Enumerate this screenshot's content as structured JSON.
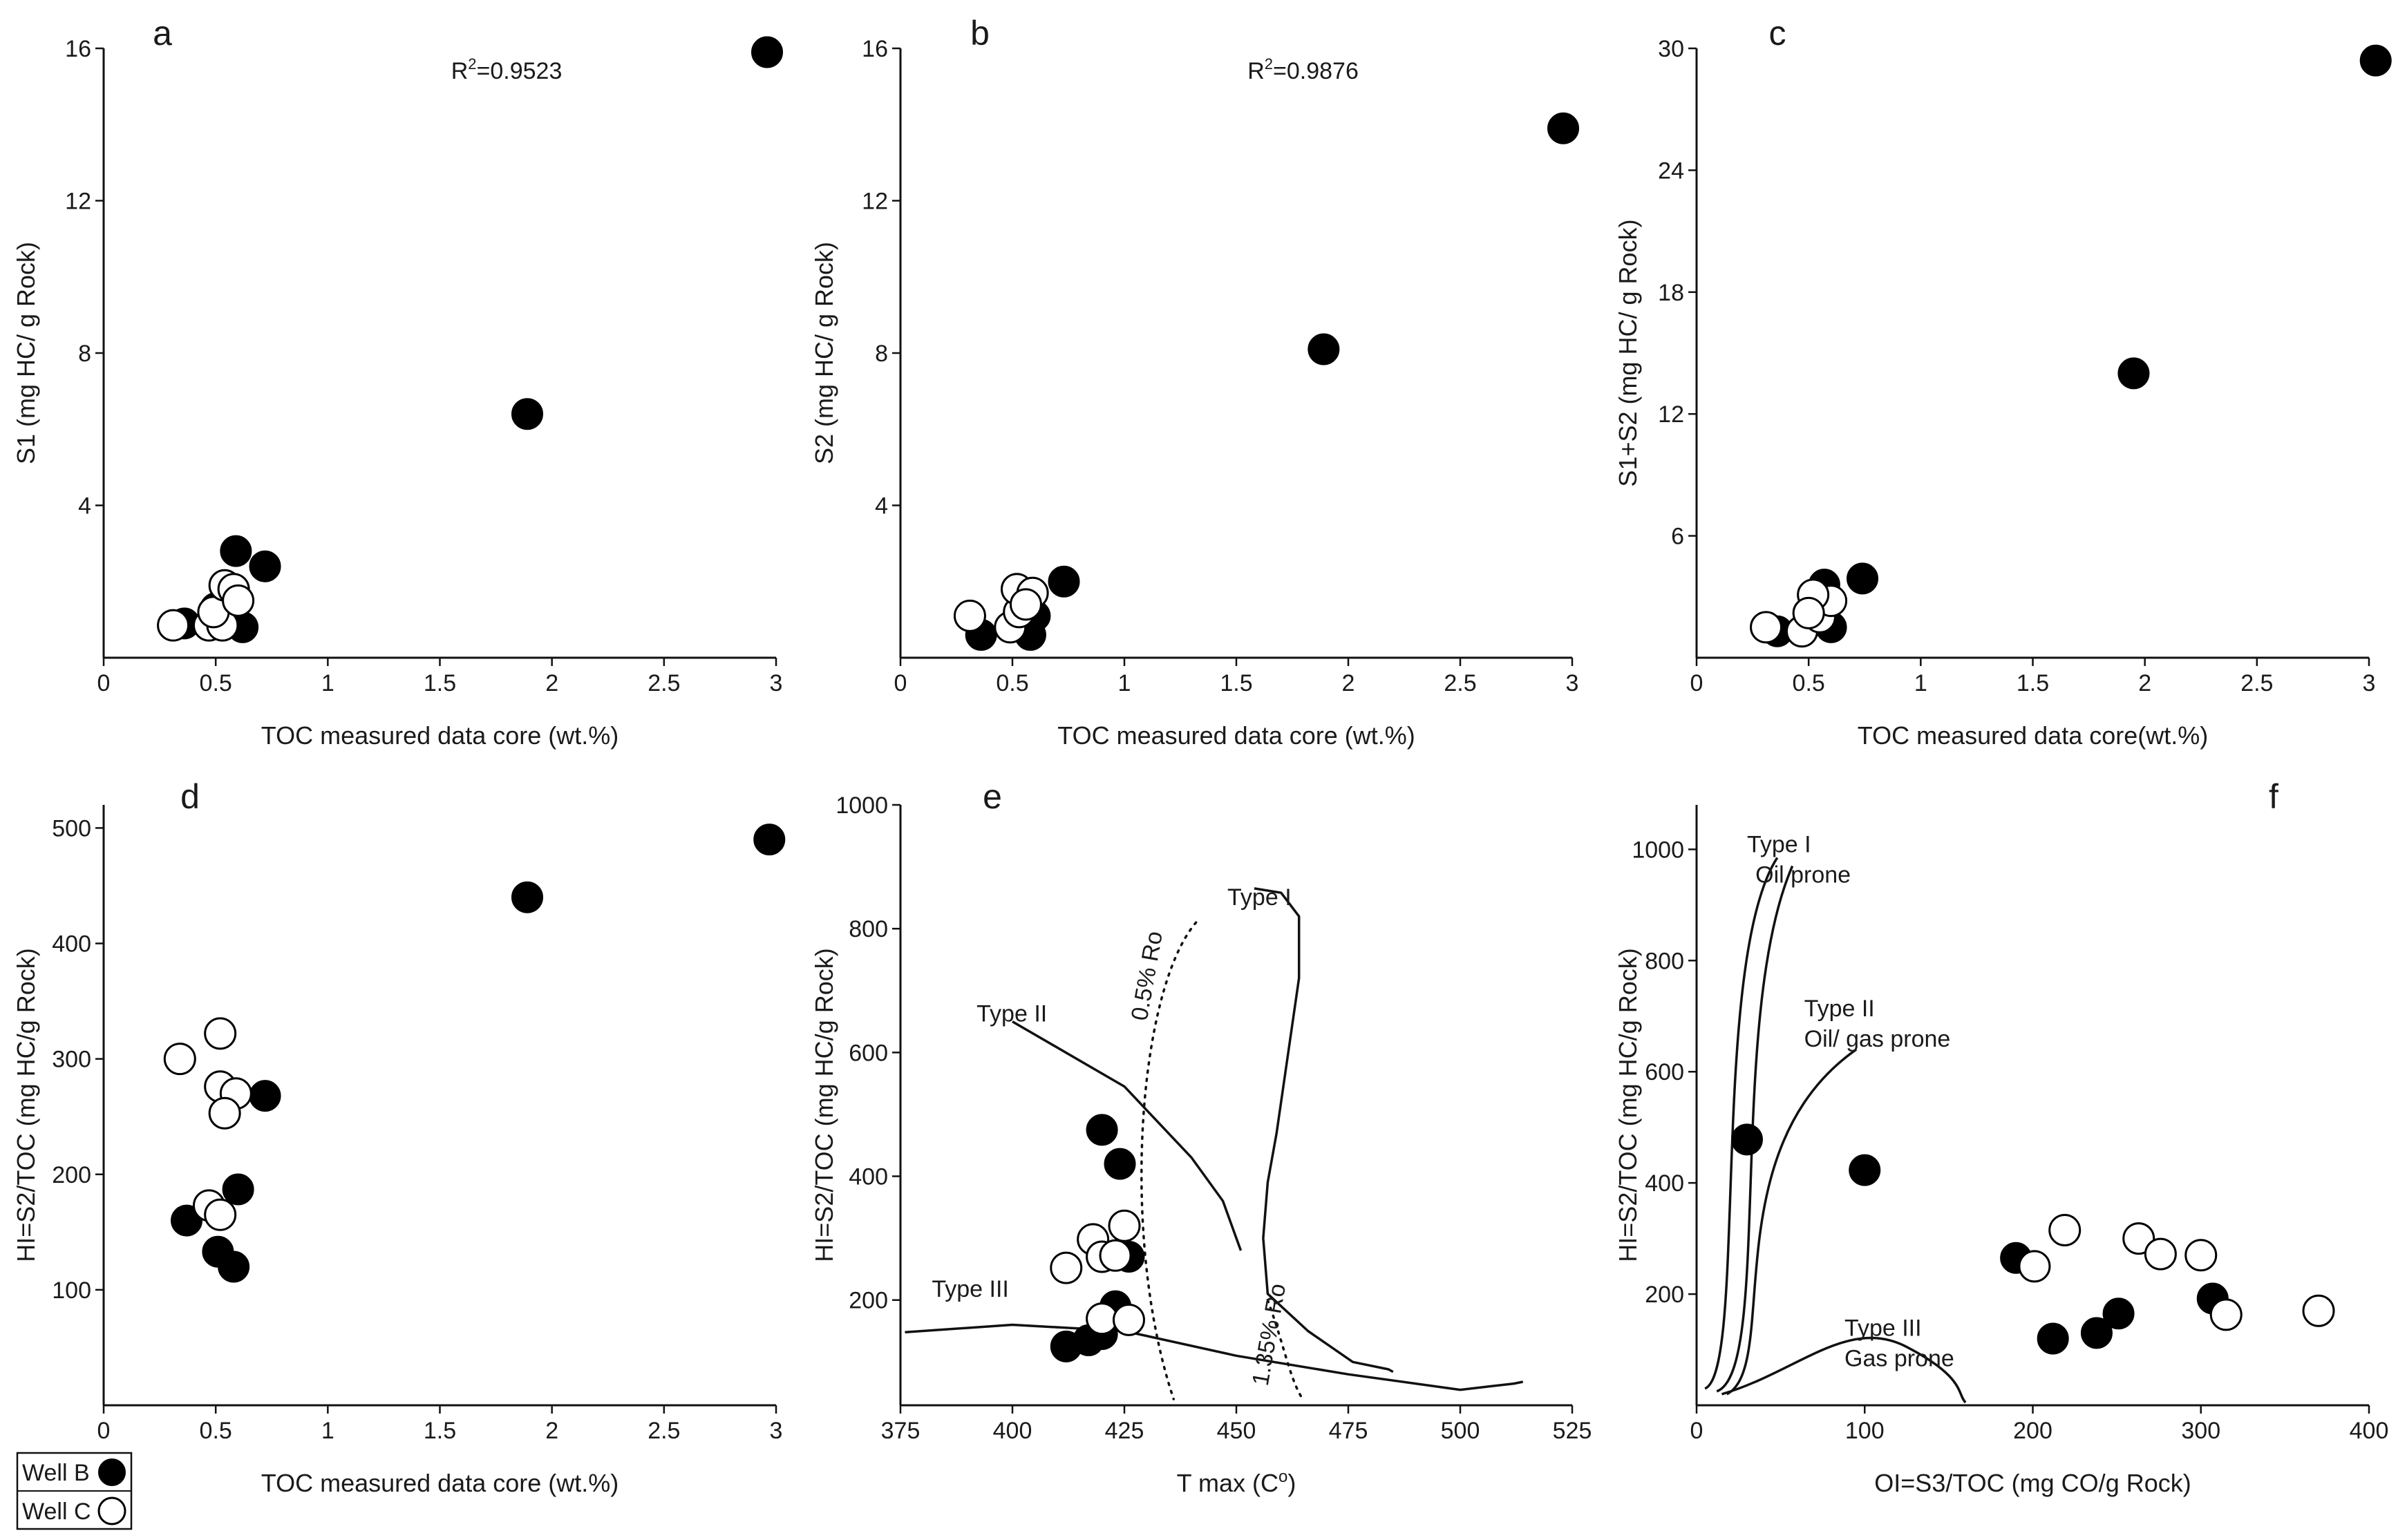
{
  "chart_data": [
    {
      "id": "a",
      "type": "scatter",
      "panel_label": "a",
      "xlabel": "TOC measured data core (wt.%)",
      "ylabel": "S1 (mg HC/ g Rock)",
      "xlim": [
        0,
        3
      ],
      "ylim": [
        0,
        16
      ],
      "xticks": [
        0,
        0.5,
        1,
        1.5,
        2,
        2.5,
        3
      ],
      "xtick_labels": [
        "0",
        "0.5",
        "1",
        "1.5",
        "2",
        "2.5",
        "3"
      ],
      "yticks": [
        4,
        8,
        12,
        16
      ],
      "ytick_labels": [
        "4",
        "8",
        "12",
        "16"
      ],
      "annotation": {
        "prefix": "R",
        "sup": "2",
        "text": "=0.9523"
      },
      "series": [
        {
          "name": "Well B",
          "points": [
            [
              0.36,
              0.9
            ],
            [
              0.5,
              1.3
            ],
            [
              0.59,
              2.8
            ],
            [
              0.72,
              2.4
            ],
            [
              0.62,
              0.8
            ],
            [
              1.89,
              6.4
            ],
            [
              2.96,
              15.9
            ]
          ]
        },
        {
          "name": "Well C",
          "points": [
            [
              0.31,
              0.85
            ],
            [
              0.47,
              0.85
            ],
            [
              0.53,
              0.85
            ],
            [
              0.49,
              1.2
            ],
            [
              0.54,
              1.9
            ],
            [
              0.58,
              1.8
            ],
            [
              0.6,
              1.5
            ]
          ]
        }
      ]
    },
    {
      "id": "b",
      "type": "scatter",
      "panel_label": "b",
      "xlabel": "TOC measured data core (wt.%)",
      "ylabel": "S2 (mg HC/ g Rock)",
      "xlim": [
        0,
        3
      ],
      "ylim": [
        0,
        16
      ],
      "xticks": [
        0,
        0.5,
        1,
        1.5,
        2,
        2.5,
        3
      ],
      "xtick_labels": [
        "0",
        "0.5",
        "1",
        "1.5",
        "2",
        "2.5",
        "3"
      ],
      "yticks": [
        4,
        8,
        12,
        16
      ],
      "ytick_labels": [
        "4",
        "8",
        "12",
        "16"
      ],
      "annotation": {
        "prefix": "R",
        "sup": "2",
        "text": "=0.9876"
      },
      "series": [
        {
          "name": "Well B",
          "points": [
            [
              0.36,
              0.6
            ],
            [
              0.58,
              0.6
            ],
            [
              0.6,
              1.1
            ],
            [
              0.73,
              2.0
            ],
            [
              1.89,
              8.1
            ],
            [
              2.96,
              13.9
            ]
          ]
        },
        {
          "name": "Well C",
          "points": [
            [
              0.31,
              1.1
            ],
            [
              0.49,
              0.8
            ],
            [
              0.53,
              1.2
            ],
            [
              0.52,
              1.8
            ],
            [
              0.59,
              1.7
            ],
            [
              0.56,
              1.4
            ]
          ]
        }
      ]
    },
    {
      "id": "c",
      "type": "scatter",
      "panel_label": "c",
      "xlabel": "TOC measured data core(wt.%)",
      "ylabel": "S1+S2  (mg HC/ g Rock)",
      "xlim": [
        0,
        3
      ],
      "ylim": [
        0,
        30
      ],
      "xticks": [
        0,
        0.5,
        1,
        1.5,
        2,
        2.5,
        3
      ],
      "xtick_labels": [
        "0",
        "0.5",
        "1",
        "1.5",
        "2",
        "2.5",
        "3"
      ],
      "yticks": [
        6,
        12,
        18,
        24,
        30
      ],
      "ytick_labels": [
        "6",
        "12",
        "18",
        "24",
        "30"
      ],
      "series": [
        {
          "name": "Well B",
          "points": [
            [
              0.36,
              1.3
            ],
            [
              0.6,
              1.5
            ],
            [
              0.57,
              3.6
            ],
            [
              0.74,
              3.9
            ],
            [
              1.95,
              14.0
            ],
            [
              3.03,
              29.4
            ]
          ]
        },
        {
          "name": "Well C",
          "points": [
            [
              0.31,
              1.5
            ],
            [
              0.47,
              1.3
            ],
            [
              0.55,
              2.0
            ],
            [
              0.6,
              2.8
            ],
            [
              0.52,
              3.1
            ],
            [
              0.5,
              2.2
            ]
          ]
        }
      ]
    },
    {
      "id": "d",
      "type": "scatter",
      "panel_label": "d",
      "xlabel": "TOC measured data core (wt.%)",
      "ylabel": "HI=S2/TOC  (mg HC/g Rock)",
      "xlim": [
        0,
        3
      ],
      "ylim": [
        0,
        520
      ],
      "xticks": [
        0,
        0.5,
        1,
        1.5,
        2,
        2.5,
        3
      ],
      "xtick_labels": [
        "0",
        "0.5",
        "1",
        "1.5",
        "2",
        "2.5",
        "3"
      ],
      "yticks": [
        100,
        200,
        300,
        400,
        500
      ],
      "ytick_labels": [
        "100",
        "200",
        "300",
        "400",
        "500"
      ],
      "series": [
        {
          "name": "Well B",
          "points": [
            [
              0.37,
              160
            ],
            [
              0.51,
              133
            ],
            [
              0.58,
              120
            ],
            [
              0.6,
              187
            ],
            [
              0.72,
              268
            ],
            [
              1.89,
              440
            ],
            [
              2.97,
              490
            ]
          ]
        },
        {
          "name": "Well C",
          "points": [
            [
              0.34,
              300
            ],
            [
              0.52,
              322
            ],
            [
              0.52,
              276
            ],
            [
              0.59,
              270
            ],
            [
              0.54,
              253
            ],
            [
              0.47,
              173
            ],
            [
              0.52,
              165
            ]
          ]
        }
      ]
    },
    {
      "id": "e",
      "type": "scatter",
      "panel_label": "e",
      "xlabel": "T max (C",
      "xlabel_sup": "o",
      "xlabel_suffix": ")",
      "ylabel": "HI=S2/TOC  (mg HC/g Rock)",
      "xlim": [
        375,
        525
      ],
      "ylim": [
        30,
        1000
      ],
      "xticks": [
        375,
        400,
        425,
        450,
        475,
        500,
        525
      ],
      "xtick_labels": [
        "375",
        "400",
        "425",
        "450",
        "475",
        "500",
        "525"
      ],
      "yticks": [
        200,
        400,
        600,
        800,
        1000
      ],
      "ytick_labels": [
        "200",
        "400",
        "600",
        "800",
        "1000"
      ],
      "series": [
        {
          "name": "Well B",
          "points": [
            [
              420,
              475
            ],
            [
              424,
              420
            ],
            [
              412,
              125
            ],
            [
              417,
              135
            ],
            [
              420,
              145
            ],
            [
              423,
              190
            ],
            [
              426,
              270
            ]
          ]
        },
        {
          "name": "Well C",
          "points": [
            [
              412,
              252
            ],
            [
              418,
              298
            ],
            [
              420,
              270
            ],
            [
              423,
              272
            ],
            [
              425,
              320
            ],
            [
              420,
              170
            ],
            [
              426,
              168
            ]
          ]
        }
      ],
      "curve_labels": {
        "type1": "Type I",
        "type2": "Type II",
        "type3": "Type III",
        "ro05": "0.5% Ro",
        "ro135": "1.35% Ro"
      }
    },
    {
      "id": "f",
      "type": "scatter",
      "panel_label": "f",
      "xlabel": "OI=S3/TOC  (mg CO/g Rock)",
      "ylabel": "HI=S2/TOC  (mg HC/g Rock)",
      "xlim": [
        0,
        400
      ],
      "ylim": [
        0,
        1080
      ],
      "xticks": [
        0,
        100,
        200,
        300,
        400
      ],
      "xtick_labels": [
        "0",
        "100",
        "200",
        "300",
        "400"
      ],
      "yticks": [
        200,
        400,
        600,
        800,
        1000
      ],
      "ytick_labels": [
        "200",
        "400",
        "600",
        "800",
        "1000"
      ],
      "series": [
        {
          "name": "Well B",
          "points": [
            [
              30,
              478
            ],
            [
              100,
              423
            ],
            [
              190,
              265
            ],
            [
              212,
              120
            ],
            [
              238,
              130
            ],
            [
              251,
              165
            ],
            [
              307,
              192
            ]
          ]
        },
        {
          "name": "Well C",
          "points": [
            [
              201,
              250
            ],
            [
              219,
              315
            ],
            [
              263,
              300
            ],
            [
              276,
              272
            ],
            [
              300,
              270
            ],
            [
              315,
              163
            ],
            [
              370,
              170
            ]
          ]
        }
      ],
      "curve_labels": {
        "type1": "Type I",
        "type1_sub": "Oil prone",
        "type2": "Type II",
        "type2_sub": "Oil/ gas prone",
        "type3": "Type III",
        "type3_sub": "Gas prone"
      }
    }
  ],
  "legend": {
    "location": "bottom-left",
    "items": [
      {
        "label": "Well B",
        "marker": "filled-circle"
      },
      {
        "label": "Well C",
        "marker": "open-circle"
      }
    ]
  },
  "colors": {
    "well_b_fill": "#000000",
    "well_c_fill": "#ffffff",
    "ink": "#111111"
  }
}
